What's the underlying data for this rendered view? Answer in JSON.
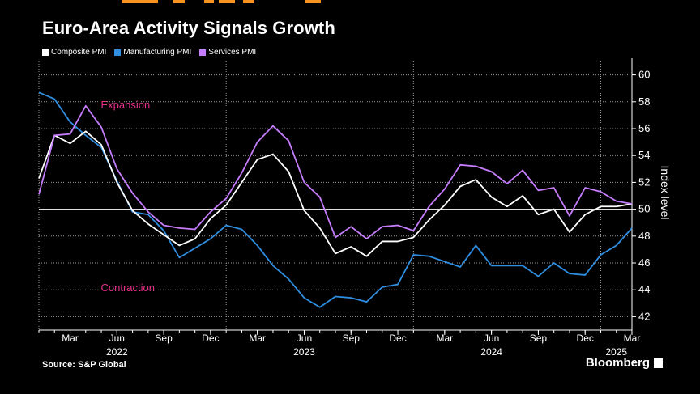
{
  "header": {
    "title": "Euro-Area Activity Signals Growth"
  },
  "legend": [
    {
      "label": "Composite PMI",
      "color": "#ffffff"
    },
    {
      "label": "Manufacturing PMI",
      "color": "#2f8ee0"
    },
    {
      "label": "Services PMI",
      "color": "#c77dff"
    }
  ],
  "footer": {
    "source": "Source: S&P Global",
    "brand": "Bloomberg"
  },
  "chart_data": {
    "type": "line",
    "title": "Euro-Area Activity Signals Growth",
    "xlabel": "",
    "ylabel": "Index level",
    "ylim": [
      41,
      61
    ],
    "yticks": [
      42,
      44,
      46,
      48,
      50,
      52,
      54,
      56,
      58,
      60
    ],
    "reference_line": 50,
    "grid": true,
    "legend_position": "top-left",
    "x": [
      "2022-01",
      "2022-02",
      "2022-03",
      "2022-04",
      "2022-05",
      "2022-06",
      "2022-07",
      "2022-08",
      "2022-09",
      "2022-10",
      "2022-11",
      "2022-12",
      "2023-01",
      "2023-02",
      "2023-03",
      "2023-04",
      "2023-05",
      "2023-06",
      "2023-07",
      "2023-08",
      "2023-09",
      "2023-10",
      "2023-11",
      "2023-12",
      "2024-01",
      "2024-02",
      "2024-03",
      "2024-04",
      "2024-05",
      "2024-06",
      "2024-07",
      "2024-08",
      "2024-09",
      "2024-10",
      "2024-11",
      "2024-12",
      "2025-01",
      "2025-02",
      "2025-03"
    ],
    "series": [
      {
        "name": "Composite PMI",
        "color": "#ffffff",
        "values": [
          52.3,
          55.5,
          54.9,
          55.8,
          54.8,
          52.0,
          49.9,
          48.9,
          48.1,
          47.3,
          47.8,
          49.3,
          50.3,
          52.0,
          53.7,
          54.1,
          52.8,
          49.9,
          48.6,
          46.7,
          47.2,
          46.5,
          47.6,
          47.6,
          47.9,
          49.2,
          50.3,
          51.7,
          52.2,
          50.9,
          50.2,
          51.0,
          49.6,
          50.0,
          48.3,
          49.6,
          50.2,
          50.2,
          50.4
        ]
      },
      {
        "name": "Manufacturing PMI",
        "color": "#2f8ee0",
        "values": [
          58.7,
          58.2,
          56.5,
          55.5,
          54.6,
          52.1,
          49.8,
          49.6,
          48.4,
          46.4,
          47.1,
          47.8,
          48.8,
          48.5,
          47.3,
          45.8,
          44.8,
          43.4,
          42.7,
          43.5,
          43.4,
          43.1,
          44.2,
          44.4,
          46.6,
          46.5,
          46.1,
          45.7,
          47.3,
          45.8,
          45.8,
          45.8,
          45.0,
          46.0,
          45.2,
          45.1,
          46.6,
          47.3,
          48.6
        ]
      },
      {
        "name": "Services PMI",
        "color": "#c77dff",
        "values": [
          51.1,
          55.5,
          55.6,
          57.7,
          56.1,
          53.0,
          51.2,
          49.8,
          48.8,
          48.6,
          48.5,
          49.8,
          50.8,
          52.7,
          55.0,
          56.2,
          55.1,
          52.0,
          50.9,
          47.9,
          48.7,
          47.8,
          48.7,
          48.8,
          48.4,
          50.2,
          51.5,
          53.3,
          53.2,
          52.8,
          51.9,
          52.9,
          51.4,
          51.6,
          49.5,
          51.6,
          51.3,
          50.6,
          50.4
        ]
      }
    ],
    "x_tick_labels": [
      "Mar",
      "Jun",
      "Sep",
      "Dec",
      "Mar",
      "Jun",
      "Sep",
      "Dec",
      "Mar",
      "Jun",
      "Sep",
      "Dec",
      "Mar"
    ],
    "x_tick_months": [
      "2022-03",
      "2022-06",
      "2022-09",
      "2022-12",
      "2023-03",
      "2023-06",
      "2023-09",
      "2023-12",
      "2024-03",
      "2024-06",
      "2024-09",
      "2024-12",
      "2025-03"
    ],
    "year_labels": [
      {
        "label": "2022",
        "month": "2022-06"
      },
      {
        "label": "2023",
        "month": "2023-06"
      },
      {
        "label": "2024",
        "month": "2024-06"
      },
      {
        "label": "2025",
        "month": "2025-02"
      }
    ],
    "annotations": [
      {
        "text": "Expansion",
        "color": "#e8318c",
        "month": "2022-03",
        "y": 57.5
      },
      {
        "text": "Contraction",
        "color": "#e8318c",
        "month": "2022-03",
        "y": 43.9
      }
    ]
  }
}
